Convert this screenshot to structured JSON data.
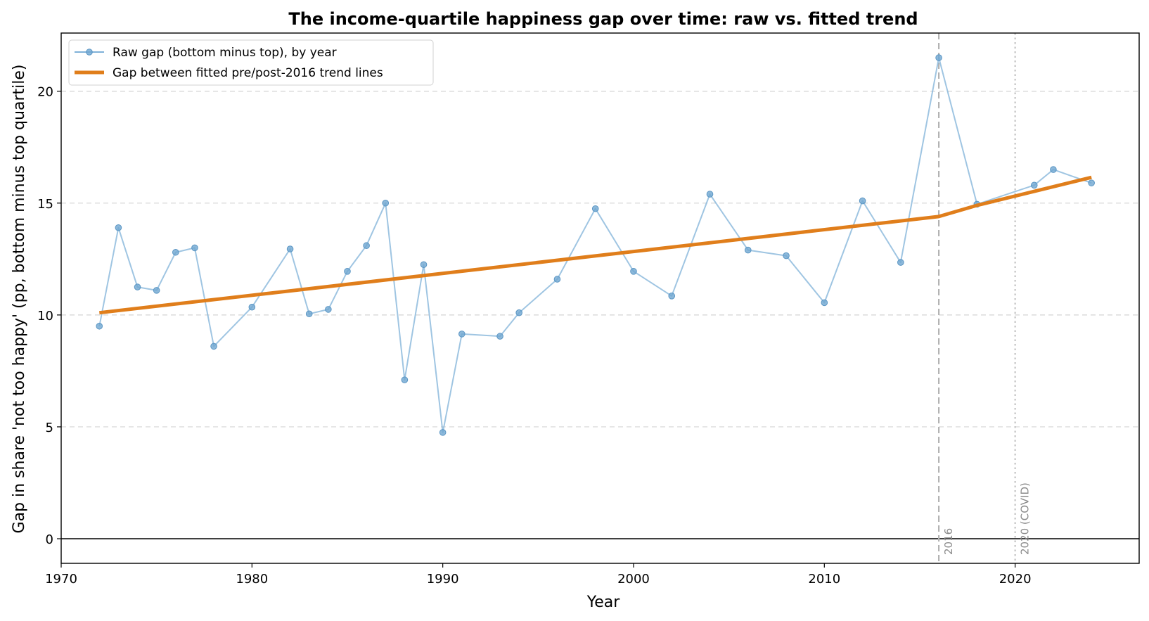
{
  "chart_data": {
    "type": "line",
    "title": "The income-quartile happiness gap over time: raw vs. fitted trend",
    "xlabel": "Year",
    "ylabel": "Gap in share 'not too happy' (pp, bottom minus top quartile)",
    "xlim": [
      1970,
      2026.5
    ],
    "ylim": [
      -1.1,
      22.6
    ],
    "xticks": [
      1970,
      1980,
      1990,
      2000,
      2010,
      2020
    ],
    "yticks": [
      0,
      5,
      10,
      15,
      20
    ],
    "grid": "horizontal dashed",
    "legend_position": "top-left",
    "series": [
      {
        "name": "Raw gap (bottom minus top), by year",
        "color": "#7fb1d8",
        "marker": "circle",
        "x": [
          1972,
          1973,
          1974,
          1975,
          1976,
          1977,
          1978,
          1980,
          1982,
          1983,
          1984,
          1985,
          1986,
          1987,
          1988,
          1989,
          1990,
          1991,
          1993,
          1994,
          1996,
          1998,
          2000,
          2002,
          2004,
          2006,
          2008,
          2010,
          2012,
          2014,
          2016,
          2018,
          2021,
          2022,
          2024
        ],
        "y": [
          9.5,
          13.9,
          11.25,
          11.1,
          12.8,
          13.0,
          8.6,
          10.35,
          12.95,
          10.05,
          10.25,
          11.95,
          13.1,
          15.0,
          7.1,
          12.25,
          4.75,
          9.15,
          9.05,
          10.1,
          11.6,
          14.75,
          11.95,
          10.85,
          15.4,
          12.9,
          12.65,
          10.55,
          15.1,
          12.35,
          21.5,
          14.95,
          15.8,
          16.5,
          15.9
        ]
      },
      {
        "name": "Gap between fitted pre/post-2016 trend lines",
        "color": "#e07e1b",
        "x": [
          1972,
          2016,
          2018,
          2024
        ],
        "y": [
          10.1,
          14.4,
          14.9,
          16.15
        ]
      }
    ],
    "reference_lines": [
      {
        "x": 2016,
        "label": "2016",
        "style": "dashed"
      },
      {
        "x": 2020,
        "label": "2020 (COVID)",
        "style": "dotted"
      }
    ],
    "hline": {
      "y": 0,
      "color": "#000000"
    }
  }
}
